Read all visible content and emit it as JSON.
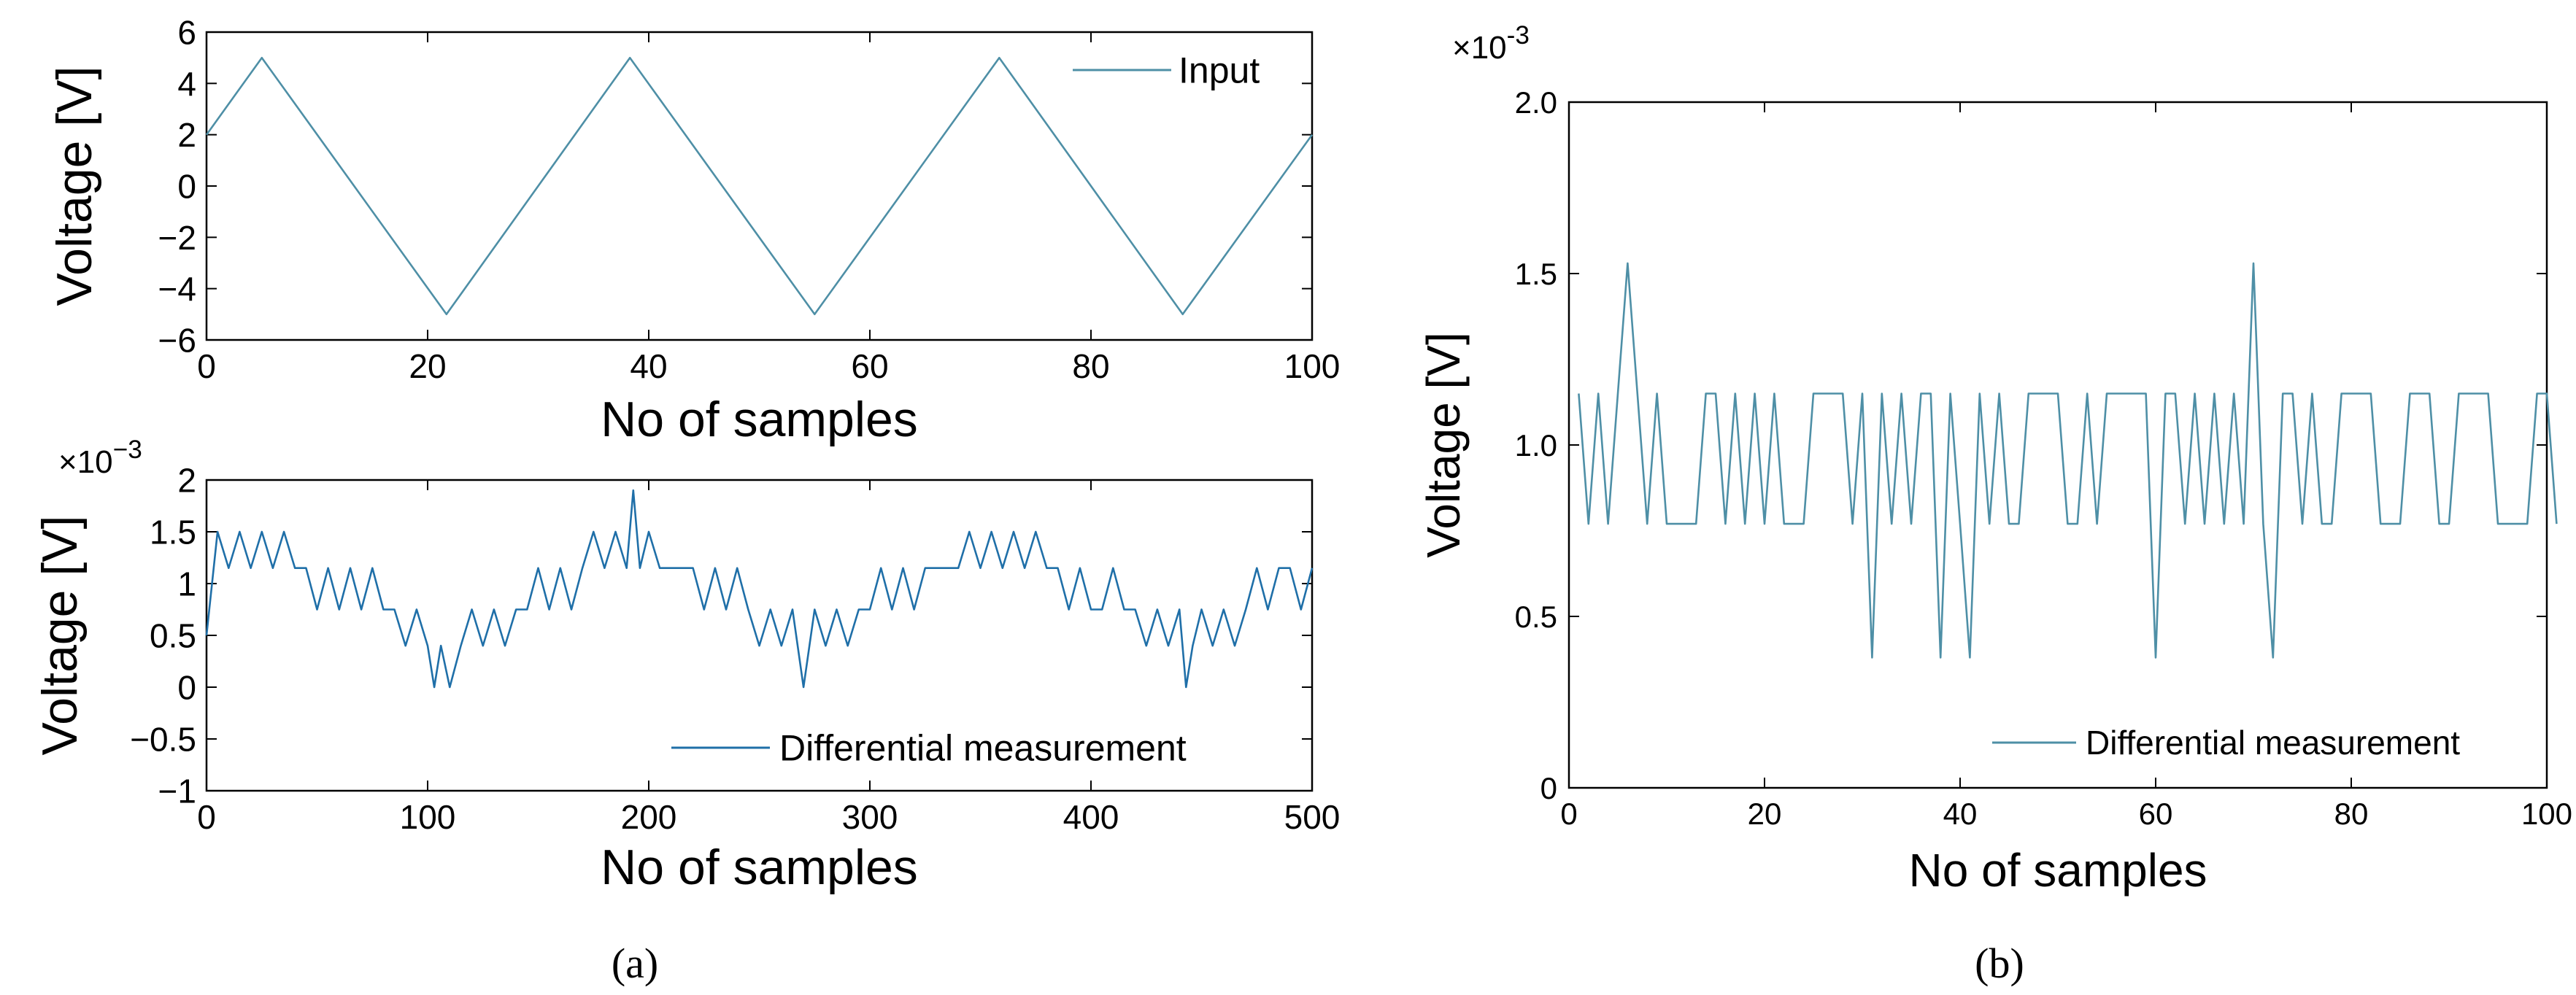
{
  "panel_labels": {
    "a": "(a)",
    "b": "(b)"
  },
  "chart_data": [
    {
      "type": "line",
      "panel": "a",
      "xlabel": "No of samples",
      "ylabel": "Voltage [V]",
      "xlim": [
        0,
        100
      ],
      "ylim": [
        -6,
        6
      ],
      "xticks": [
        0,
        20,
        40,
        60,
        80,
        100
      ],
      "yticks": [
        -6,
        -4,
        -2,
        0,
        2,
        4,
        6
      ],
      "xtick_labels": [
        "0",
        "20",
        "40",
        "60",
        "80",
        "100"
      ],
      "ytick_labels": [
        "−6",
        "−4",
        "−2",
        "0",
        "2",
        "4",
        "6"
      ],
      "grid": false,
      "legend": "top-right",
      "color": "#4e8fa6",
      "series": [
        {
          "name": "Input",
          "x": [
            0,
            5,
            21.7,
            38.3,
            55,
            71.7,
            88.3,
            100
          ],
          "y": [
            2,
            5,
            -5,
            5,
            -5,
            5,
            -5,
            2
          ]
        }
      ]
    },
    {
      "type": "line",
      "panel": "a",
      "xlabel": "No of samples",
      "ylabel": "Voltage [V]",
      "exponent": "×10",
      "exponent_power": "−3",
      "xlim": [
        0,
        500
      ],
      "ylim": [
        -1,
        2
      ],
      "xticks": [
        0,
        100,
        200,
        300,
        400,
        500
      ],
      "yticks": [
        -1,
        -0.5,
        0,
        0.5,
        1,
        1.5,
        2
      ],
      "xtick_labels": [
        "0",
        "100",
        "200",
        "300",
        "400",
        "500"
      ],
      "ytick_labels": [
        "−1",
        "−0.5",
        "0",
        "0.5",
        "1",
        "1.5",
        "2"
      ],
      "grid": false,
      "legend": "bottom-right",
      "color": "#1f6fa8",
      "series": [
        {
          "name": "Differential measurement",
          "x": [
            0,
            5,
            10,
            15,
            20,
            25,
            30,
            35,
            40,
            45,
            50,
            55,
            60,
            65,
            70,
            75,
            80,
            85,
            90,
            95,
            100,
            103,
            106,
            110,
            115,
            120,
            125,
            130,
            135,
            140,
            145,
            150,
            155,
            160,
            165,
            170,
            175,
            180,
            185,
            190,
            193,
            196,
            200,
            205,
            210,
            215,
            220,
            225,
            230,
            235,
            240,
            245,
            250,
            255,
            260,
            265,
            270,
            275,
            280,
            285,
            290,
            295,
            300,
            305,
            310,
            315,
            320,
            325,
            330,
            335,
            340,
            345,
            350,
            355,
            360,
            365,
            370,
            375,
            380,
            385,
            390,
            395,
            400,
            405,
            410,
            415,
            420,
            425,
            430,
            435,
            440,
            443,
            446,
            450,
            455,
            460,
            465,
            470,
            475,
            480,
            485,
            490,
            495,
            500
          ],
          "y": [
            0.5,
            1.5,
            1.15,
            1.5,
            1.15,
            1.5,
            1.15,
            1.5,
            1.15,
            1.15,
            0.75,
            1.15,
            0.75,
            1.15,
            0.75,
            1.15,
            0.75,
            0.75,
            0.4,
            0.75,
            0.4,
            0.0,
            0.4,
            0.0,
            0.4,
            0.75,
            0.4,
            0.75,
            0.4,
            0.75,
            0.75,
            1.15,
            0.75,
            1.15,
            0.75,
            1.15,
            1.5,
            1.15,
            1.5,
            1.15,
            1.9,
            1.15,
            1.5,
            1.15,
            1.15,
            1.15,
            1.15,
            0.75,
            1.15,
            0.75,
            1.15,
            0.75,
            0.4,
            0.75,
            0.4,
            0.75,
            0.0,
            0.75,
            0.4,
            0.75,
            0.4,
            0.75,
            0.75,
            1.15,
            0.75,
            1.15,
            0.75,
            1.15,
            1.15,
            1.15,
            1.15,
            1.5,
            1.15,
            1.5,
            1.15,
            1.5,
            1.15,
            1.5,
            1.15,
            1.15,
            0.75,
            1.15,
            0.75,
            0.75,
            1.15,
            0.75,
            0.75,
            0.4,
            0.75,
            0.4,
            0.75,
            0.0,
            0.4,
            0.75,
            0.4,
            0.75,
            0.4,
            0.75,
            1.15,
            0.75,
            1.15,
            1.15,
            0.75,
            1.15
          ]
        }
      ]
    },
    {
      "type": "line",
      "panel": "b",
      "xlabel": "No of samples",
      "ylabel": "Voltage [V]",
      "exponent": "×10",
      "exponent_power": "-3",
      "xlim": [
        0,
        100
      ],
      "ylim": [
        0,
        2.0
      ],
      "xticks": [
        0,
        20,
        40,
        60,
        80,
        100
      ],
      "yticks": [
        0,
        0.5,
        1.0,
        1.5,
        2.0
      ],
      "xtick_labels": [
        "0",
        "20",
        "40",
        "60",
        "80",
        "100"
      ],
      "ytick_labels": [
        "0",
        "0.5",
        "1.0",
        "1.5",
        "2.0"
      ],
      "grid": false,
      "legend": "bottom-right",
      "color": "#4e8fa6",
      "series": [
        {
          "name": "Differential measurement",
          "x": [
            1,
            2,
            3,
            4,
            5,
            6,
            7,
            8,
            9,
            10,
            11,
            12,
            13,
            14,
            15,
            16,
            17,
            18,
            19,
            20,
            21,
            22,
            23,
            24,
            25,
            26,
            27,
            28,
            29,
            30,
            31,
            32,
            33,
            34,
            35,
            36,
            37,
            38,
            39,
            40,
            41,
            42,
            43,
            44,
            45,
            46,
            47,
            48,
            49,
            50,
            51,
            52,
            53,
            54,
            55,
            56,
            57,
            58,
            59,
            60,
            61,
            62,
            63,
            64,
            65,
            66,
            67,
            68,
            69,
            70,
            71,
            72,
            73,
            74,
            75,
            76,
            77,
            78,
            79,
            80,
            81,
            82,
            83,
            84,
            85,
            86,
            87,
            88,
            89,
            90,
            91,
            92,
            93,
            94,
            95,
            96,
            97,
            98,
            99,
            100,
            101
          ],
          "y": [
            1.15,
            0.77,
            1.15,
            0.77,
            1.15,
            1.53,
            1.15,
            0.77,
            1.15,
            0.77,
            0.77,
            0.77,
            0.77,
            1.15,
            1.15,
            0.77,
            1.15,
            0.77,
            1.15,
            0.77,
            1.15,
            0.77,
            0.77,
            0.77,
            1.15,
            1.15,
            1.15,
            1.15,
            0.77,
            1.15,
            0.38,
            1.15,
            0.77,
            1.15,
            0.77,
            1.15,
            1.15,
            0.38,
            1.15,
            0.77,
            0.38,
            1.15,
            0.77,
            1.15,
            0.77,
            0.77,
            1.15,
            1.15,
            1.15,
            1.15,
            0.77,
            0.77,
            1.15,
            0.77,
            1.15,
            1.15,
            1.15,
            1.15,
            1.15,
            0.38,
            1.15,
            1.15,
            0.77,
            1.15,
            0.77,
            1.15,
            0.77,
            1.15,
            0.77,
            1.53,
            0.77,
            0.38,
            1.15,
            1.15,
            0.77,
            1.15,
            0.77,
            0.77,
            1.15,
            1.15,
            1.15,
            1.15,
            0.77,
            0.77,
            0.77,
            1.15,
            1.15,
            1.15,
            0.77,
            0.77,
            1.15,
            1.15,
            1.15,
            1.15,
            0.77,
            0.77,
            0.77,
            0.77,
            1.15,
            1.15,
            0.77
          ]
        }
      ]
    }
  ]
}
